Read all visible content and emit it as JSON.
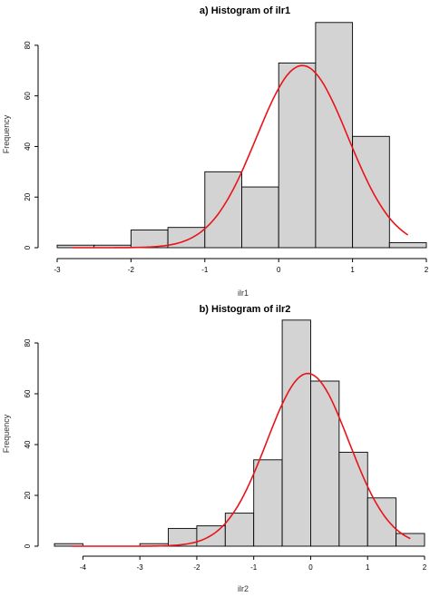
{
  "curve_color": "#e8141a",
  "bar_color": "#d3d3d3",
  "chart_data": [
    {
      "type": "bar",
      "title": "a) Histogram of ilr1",
      "xlabel": "ilr1",
      "ylabel": "Frequency",
      "xlim": [
        -3,
        2
      ],
      "ylim": [
        0,
        90
      ],
      "x_ticks": [
        -3,
        -2,
        -1,
        0,
        1,
        2
      ],
      "x_tick_labels": [
        "-3",
        "-2",
        "-1",
        "0",
        "1",
        "2"
      ],
      "y_ticks": [
        0,
        20,
        40,
        60,
        80
      ],
      "y_tick_labels": [
        "0",
        "20",
        "40",
        "60",
        "80"
      ],
      "bins": [
        {
          "x0": -3.0,
          "x1": -2.5,
          "count": 1
        },
        {
          "x0": -2.5,
          "x1": -2.0,
          "count": 1
        },
        {
          "x0": -2.0,
          "x1": -1.5,
          "count": 7
        },
        {
          "x0": -1.5,
          "x1": -1.0,
          "count": 8
        },
        {
          "x0": -1.0,
          "x1": -0.5,
          "count": 30
        },
        {
          "x0": -0.5,
          "x1": 0.0,
          "count": 24
        },
        {
          "x0": 0.0,
          "x1": 0.5,
          "count": 73
        },
        {
          "x0": 0.5,
          "x1": 1.0,
          "count": 89
        },
        {
          "x0": 1.0,
          "x1": 1.5,
          "count": 44
        },
        {
          "x0": 1.5,
          "x1": 2.0,
          "count": 2
        }
      ],
      "normal_curve": {
        "mean": 0.32,
        "sd": 0.62,
        "peak": 72,
        "x_start": -2.8,
        "x_end": 1.75
      }
    },
    {
      "type": "bar",
      "title": "b) Histogram of ilr2",
      "xlabel": "ilr2",
      "ylabel": "Frequency",
      "xlim": [
        -4.5,
        2
      ],
      "ylim": [
        0,
        90
      ],
      "x_ticks": [
        -4,
        -3,
        -2,
        -1,
        0,
        1,
        2
      ],
      "x_tick_labels": [
        "-4",
        "-3",
        "-2",
        "-1",
        "0",
        "1",
        "2"
      ],
      "y_ticks": [
        0,
        20,
        40,
        60,
        80
      ],
      "y_tick_labels": [
        "0",
        "20",
        "40",
        "60",
        "80"
      ],
      "bins": [
        {
          "x0": -4.5,
          "x1": -4.0,
          "count": 1
        },
        {
          "x0": -4.0,
          "x1": -3.5,
          "count": 0
        },
        {
          "x0": -3.5,
          "x1": -3.0,
          "count": 0
        },
        {
          "x0": -3.0,
          "x1": -2.5,
          "count": 1
        },
        {
          "x0": -2.5,
          "x1": -2.0,
          "count": 7
        },
        {
          "x0": -2.0,
          "x1": -1.5,
          "count": 8
        },
        {
          "x0": -1.5,
          "x1": -1.0,
          "count": 13
        },
        {
          "x0": -1.0,
          "x1": -0.5,
          "count": 34
        },
        {
          "x0": -0.5,
          "x1": 0.0,
          "count": 89
        },
        {
          "x0": 0.0,
          "x1": 0.5,
          "count": 65
        },
        {
          "x0": 0.5,
          "x1": 1.0,
          "count": 37
        },
        {
          "x0": 1.0,
          "x1": 1.5,
          "count": 19
        },
        {
          "x0": 1.5,
          "x1": 2.0,
          "count": 5
        }
      ],
      "normal_curve": {
        "mean": -0.05,
        "sd": 0.72,
        "peak": 68,
        "x_start": -4.2,
        "x_end": 1.75
      }
    }
  ]
}
